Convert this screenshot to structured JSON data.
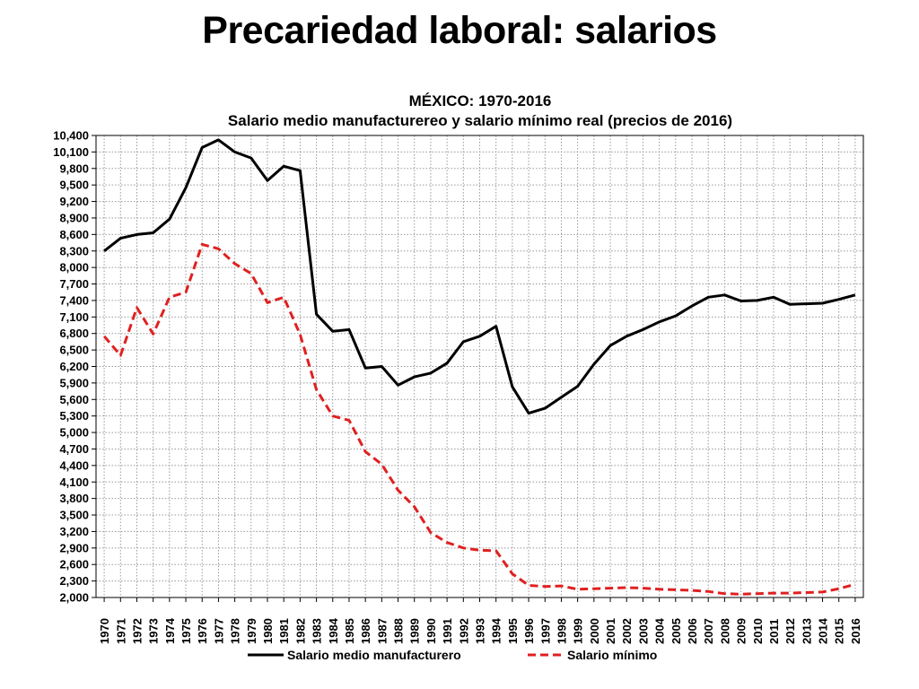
{
  "slide": {
    "title": "Precariedad laboral: salarios"
  },
  "chart_data": {
    "type": "line",
    "title": "MÉXICO: 1970-2016",
    "subtitle": "Salario medio manufacturereo y salario mínimo real (precios de 2016)",
    "xlabel": "",
    "ylabel": "",
    "ylim": [
      2000,
      10400
    ],
    "yticks": [
      "2,000",
      "2,300",
      "2,600",
      "2,900",
      "3,200",
      "3,500",
      "3,800",
      "4,100",
      "4,400",
      "4,700",
      "5,000",
      "5,300",
      "5,600",
      "5,900",
      "6,200",
      "6,500",
      "6,800",
      "7,100",
      "7,400",
      "7,700",
      "8,000",
      "8,300",
      "8,600",
      "8,900",
      "9,200",
      "9,500",
      "9,800",
      "10,100",
      "10,400"
    ],
    "x": [
      "1970",
      "1971",
      "1972",
      "1973",
      "1974",
      "1975",
      "1976",
      "1977",
      "1978",
      "1979",
      "1980",
      "1981",
      "1982",
      "1983",
      "1984",
      "1985",
      "1986",
      "1987",
      "1988",
      "1989",
      "1990",
      "1991",
      "1992",
      "1993",
      "1994",
      "1995",
      "1996",
      "1997",
      "1998",
      "1999",
      "2000",
      "2001",
      "2002",
      "2003",
      "2004",
      "2005",
      "2006",
      "2007",
      "2008",
      "2009",
      "2010",
      "2011",
      "2012",
      "2013",
      "2014",
      "2015",
      "2016"
    ],
    "grid": true,
    "legend_position": "bottom",
    "series": [
      {
        "name": "Salario medio manufacturero",
        "color": "#000000",
        "style": "solid",
        "values": [
          8300,
          8530,
          8600,
          8630,
          8880,
          9450,
          10180,
          10320,
          10100,
          9990,
          9580,
          9840,
          9760,
          7150,
          6840,
          6870,
          6170,
          6200,
          5860,
          6010,
          6080,
          6260,
          6650,
          6750,
          6930,
          5830,
          5350,
          5440,
          5640,
          5840,
          6240,
          6580,
          6750,
          6870,
          7010,
          7120,
          7300,
          7460,
          7500,
          7390,
          7400,
          7460,
          7330,
          7340,
          7350,
          7420,
          7500
        ]
      },
      {
        "name": "Salario mínimo",
        "color": "#e02020",
        "style": "dashed",
        "values": [
          6750,
          6400,
          7270,
          6790,
          7460,
          7550,
          8420,
          8340,
          8070,
          7890,
          7360,
          7460,
          6780,
          5780,
          5300,
          5220,
          4650,
          4420,
          3950,
          3650,
          3180,
          3000,
          2900,
          2860,
          2850,
          2430,
          2220,
          2200,
          2210,
          2150,
          2160,
          2170,
          2180,
          2170,
          2150,
          2140,
          2130,
          2110,
          2070,
          2060,
          2070,
          2080,
          2080,
          2090,
          2100,
          2160,
          2240
        ]
      }
    ]
  }
}
